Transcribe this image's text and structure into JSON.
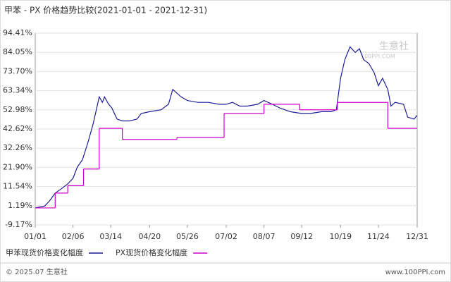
{
  "chart_data": {
    "type": "line",
    "title": "甲苯 - PX 价格趋势比较(2021-01-01 - 2021-12-31)",
    "watermark": "生意社",
    "watermark_sub": "100PPI.COM",
    "footer_left": "© 2025.07 生意社",
    "footer_right": "www.100PPI.com",
    "xlim": [
      "01/01",
      "12/31"
    ],
    "xticks": [
      "01/01",
      "02/06",
      "03/14",
      "04/20",
      "05/26",
      "07/02",
      "08/07",
      "09/12",
      "10/19",
      "11/24",
      "12/31"
    ],
    "ylim": [
      -9.17,
      94.41
    ],
    "yticks": [
      {
        "value": -9.17,
        "label": "-9.17%"
      },
      {
        "value": 1.19,
        "label": "1.19%"
      },
      {
        "value": 11.54,
        "label": "11.54%"
      },
      {
        "value": 21.9,
        "label": "21.90%"
      },
      {
        "value": 32.26,
        "label": "32.26%"
      },
      {
        "value": 42.62,
        "label": "42.62%"
      },
      {
        "value": 52.98,
        "label": "52.98%"
      },
      {
        "value": 63.34,
        "label": "63.34%"
      },
      {
        "value": 73.7,
        "label": "73.70%"
      },
      {
        "value": 84.05,
        "label": "84.05%"
      },
      {
        "value": 94.41,
        "label": "94.41%"
      }
    ],
    "grid": true,
    "series": [
      {
        "name": "甲苯现货价格变化幅度",
        "color": "#1c1c96",
        "step": false,
        "x": [
          "01/01",
          "01/10",
          "01/15",
          "01/20",
          "01/25",
          "02/01",
          "02/06",
          "02/10",
          "02/15",
          "02/20",
          "02/25",
          "03/01",
          "03/03",
          "03/06",
          "03/08",
          "03/12",
          "03/15",
          "03/20",
          "03/25",
          "04/01",
          "04/08",
          "04/12",
          "04/20",
          "05/01",
          "05/08",
          "05/12",
          "05/16",
          "05/20",
          "05/26",
          "06/05",
          "06/15",
          "06/25",
          "07/02",
          "07/08",
          "07/15",
          "07/22",
          "08/01",
          "08/07",
          "08/15",
          "08/22",
          "09/01",
          "09/12",
          "09/20",
          "10/01",
          "10/10",
          "10/15",
          "10/19",
          "10/23",
          "10/28",
          "11/02",
          "11/06",
          "11/10",
          "11/15",
          "11/20",
          "11/24",
          "11/28",
          "12/03",
          "12/06",
          "12/10",
          "12/18",
          "12/22",
          "12/28",
          "12/31"
        ],
        "values": [
          0,
          1,
          4,
          8,
          10,
          13,
          16,
          22,
          26,
          35,
          45,
          55,
          60,
          57,
          60,
          56,
          54,
          48,
          47,
          47,
          48,
          51,
          52,
          53,
          56,
          64,
          62,
          60,
          58,
          57,
          57,
          56,
          56,
          57,
          55,
          55,
          56,
          58,
          56,
          54,
          52,
          51,
          51,
          52,
          52,
          53,
          70,
          80,
          87,
          84,
          86,
          80,
          78,
          73,
          66,
          70,
          64,
          55,
          57,
          56,
          49,
          48,
          50
        ]
      },
      {
        "name": "PX现货价格变化幅度",
        "color": "#cc00cc",
        "step": true,
        "x": [
          "01/01",
          "01/20",
          "02/01",
          "02/16",
          "03/03",
          "03/25",
          "05/16",
          "06/30",
          "08/07",
          "09/10",
          "10/16",
          "12/03",
          "12/31"
        ],
        "values": [
          0,
          8,
          12,
          21,
          43,
          37,
          38,
          51,
          56,
          53,
          57,
          43,
          43
        ]
      }
    ]
  }
}
